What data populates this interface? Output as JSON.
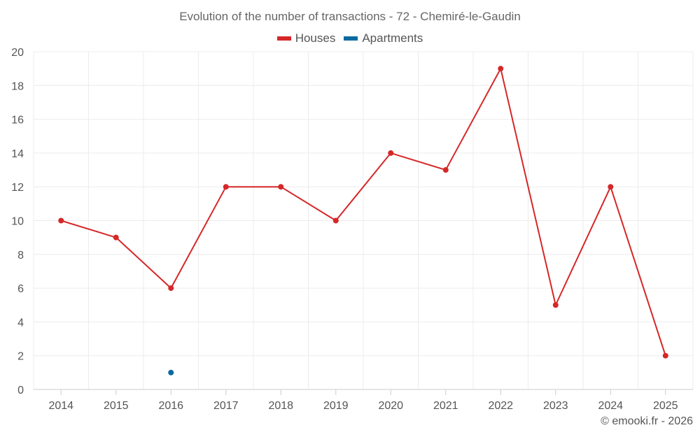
{
  "chart_data": {
    "type": "line",
    "title": "Evolution of the number of transactions - 72 - Chemiré-le-Gaudin",
    "xlabel": "",
    "ylabel": "",
    "categories": [
      "2014",
      "2015",
      "2016",
      "2017",
      "2018",
      "2019",
      "2020",
      "2021",
      "2022",
      "2023",
      "2024",
      "2025"
    ],
    "ylim": [
      0,
      20
    ],
    "yticks": [
      0,
      2,
      4,
      6,
      8,
      10,
      12,
      14,
      16,
      18,
      20
    ],
    "grid": true,
    "legend_position": "top-center",
    "series": [
      {
        "name": "Houses",
        "color": "#d62728",
        "values": [
          10,
          9,
          6,
          12,
          12,
          10,
          14,
          13,
          19,
          5,
          12,
          2
        ]
      },
      {
        "name": "Apartments",
        "color": "#0a6aa1",
        "values": [
          null,
          null,
          1,
          null,
          null,
          null,
          null,
          null,
          null,
          null,
          null,
          null
        ]
      }
    ]
  },
  "credit": "© emooki.fr - 2026"
}
